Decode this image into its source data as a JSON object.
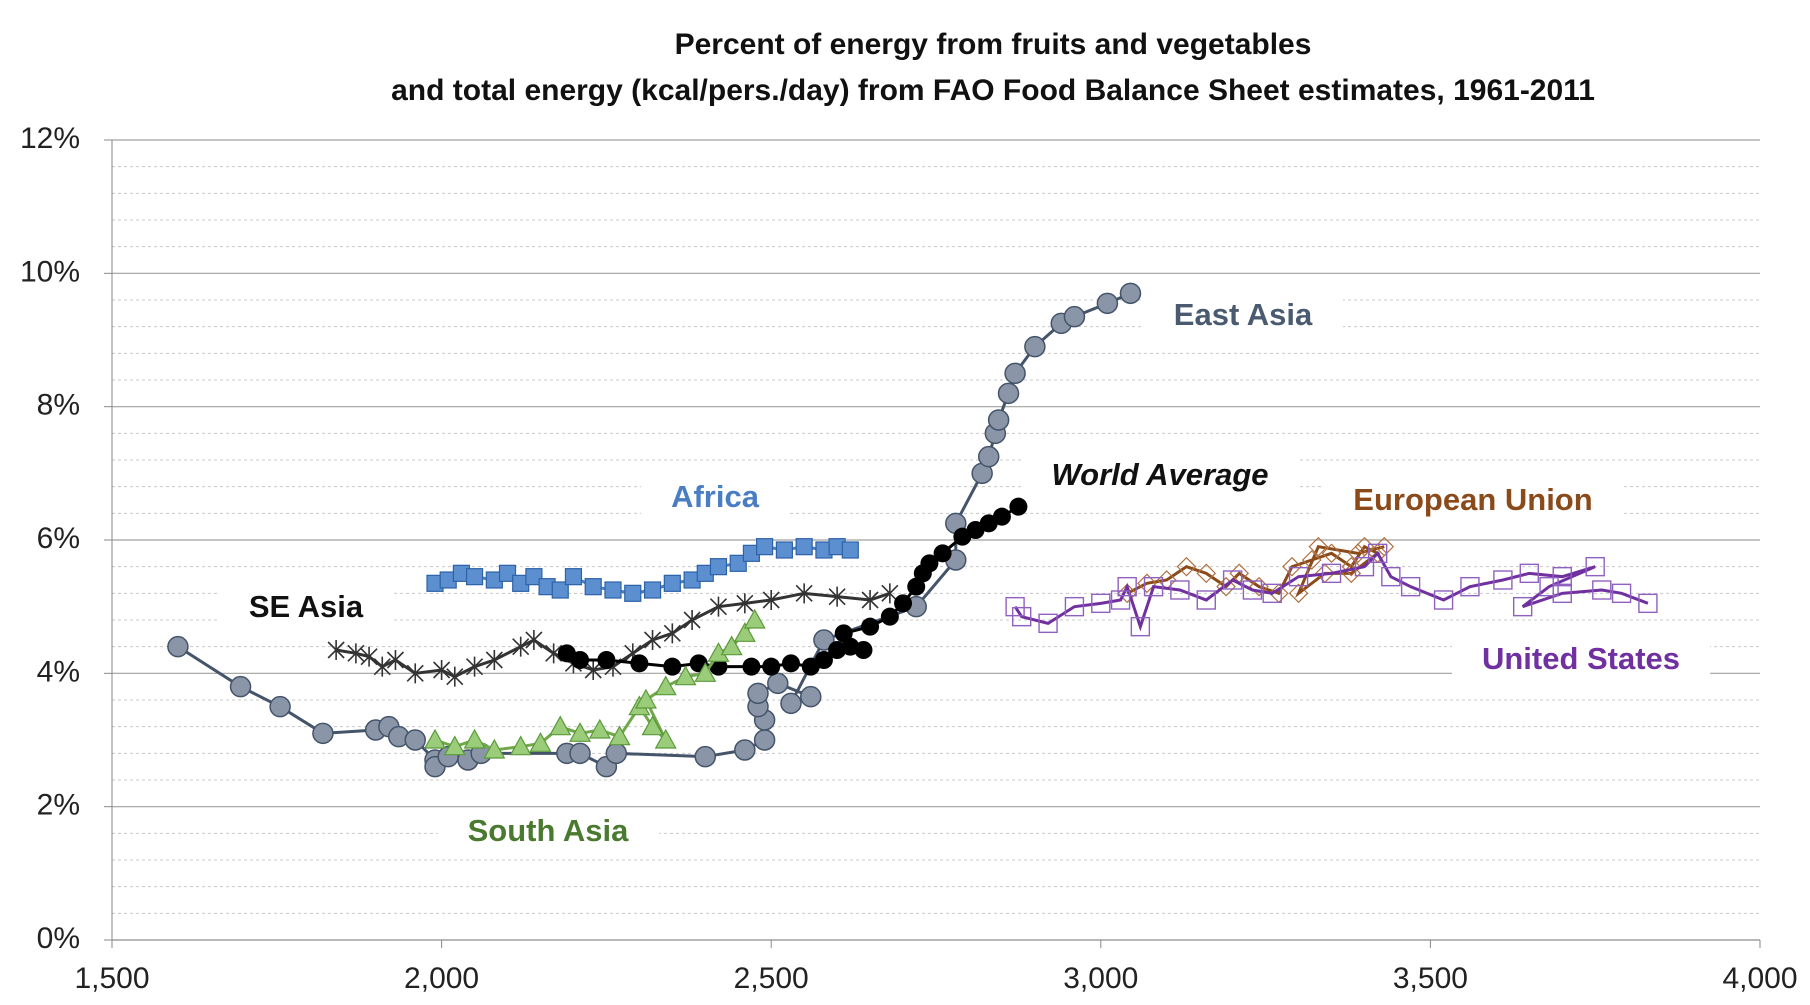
{
  "chart_data": {
    "type": "line",
    "title": [
      "Percent of energy from fruits and vegetables",
      "and total energy (kcal/pers./day) from FAO Food Balance Sheet estimates, 1961-2011"
    ],
    "xlim": [
      1500,
      4000
    ],
    "xticks": [
      {
        "value": 1500,
        "label": "1,500"
      },
      {
        "value": 2000,
        "label": "2,000"
      },
      {
        "value": 2500,
        "label": "2,500"
      },
      {
        "value": 3000,
        "label": "3,000"
      },
      {
        "value": 3500,
        "label": "3,500"
      },
      {
        "value": 4000,
        "label": "4,000"
      }
    ],
    "ylim": [
      0,
      12
    ],
    "yticks": [
      {
        "value": 0,
        "label": "0%"
      },
      {
        "value": 2,
        "label": "2%"
      },
      {
        "value": 4,
        "label": "4%"
      },
      {
        "value": 6,
        "label": "6%"
      },
      {
        "value": 8,
        "label": "8%"
      },
      {
        "value": 10,
        "label": "10%"
      },
      {
        "value": 12,
        "label": "12%"
      }
    ],
    "minor_yticks": [
      0.4,
      0.8,
      1.2,
      1.6,
      2.4,
      2.8,
      3.2,
      3.6,
      4.4,
      4.8,
      5.2,
      5.6,
      6.4,
      6.8,
      7.2,
      7.6,
      8.4,
      8.8,
      9.2,
      9.6,
      10.4,
      10.8,
      11.2,
      11.6
    ],
    "grid": true,
    "series": [
      {
        "name": "East Asia",
        "color": "#44546a",
        "marker": "circle",
        "x": [
          1600,
          1695,
          1755,
          1820,
          1900,
          1920,
          1935,
          1960,
          1990,
          1990,
          2010,
          2040,
          2060,
          2190,
          2210,
          2250,
          2265,
          2400,
          2460,
          2490,
          2490,
          2480,
          2480,
          2510,
          2560,
          2530,
          2580,
          2720,
          2780,
          2780,
          2820,
          2830,
          2840,
          2845,
          2860,
          2870,
          2900,
          2940,
          2960,
          3010,
          3045
        ],
        "values": [
          4.4,
          3.8,
          3.5,
          3.1,
          3.15,
          3.2,
          3.05,
          3.0,
          2.7,
          2.6,
          2.75,
          2.7,
          2.8,
          2.8,
          2.8,
          2.6,
          2.8,
          2.75,
          2.85,
          3.0,
          3.3,
          3.5,
          3.7,
          3.85,
          3.65,
          3.55,
          4.5,
          5.0,
          5.7,
          6.25,
          7.0,
          7.25,
          7.6,
          7.8,
          8.2,
          8.5,
          8.9,
          9.25,
          9.35,
          9.55,
          9.7
        ]
      },
      {
        "name": "Africa",
        "color": "#4a7ec4",
        "marker": "square",
        "x": [
          1990,
          2010,
          2030,
          2050,
          2080,
          2100,
          2120,
          2140,
          2160,
          2180,
          2200,
          2230,
          2260,
          2290,
          2320,
          2350,
          2380,
          2400,
          2420,
          2450,
          2470,
          2490,
          2520,
          2550,
          2580,
          2600,
          2620
        ],
        "values": [
          5.35,
          5.4,
          5.5,
          5.45,
          5.4,
          5.5,
          5.35,
          5.45,
          5.3,
          5.25,
          5.45,
          5.3,
          5.25,
          5.2,
          5.25,
          5.35,
          5.4,
          5.5,
          5.6,
          5.65,
          5.8,
          5.9,
          5.85,
          5.9,
          5.85,
          5.9,
          5.85
        ]
      },
      {
        "name": "SE Asia",
        "color": "#333333",
        "marker": "star",
        "x": [
          1840,
          1870,
          1890,
          1910,
          1930,
          1960,
          2000,
          2020,
          2050,
          2080,
          2120,
          2140,
          2170,
          2200,
          2230,
          2260,
          2290,
          2320,
          2350,
          2380,
          2420,
          2460,
          2500,
          2550,
          2600,
          2650,
          2680
        ],
        "values": [
          4.35,
          4.3,
          4.25,
          4.1,
          4.2,
          4.0,
          4.05,
          3.95,
          4.1,
          4.2,
          4.4,
          4.5,
          4.3,
          4.15,
          4.05,
          4.1,
          4.3,
          4.5,
          4.6,
          4.8,
          5.0,
          5.05,
          5.1,
          5.2,
          5.15,
          5.1,
          5.2
        ]
      },
      {
        "name": "World Average",
        "color": "#000000",
        "marker": "dot",
        "x": [
          2190,
          2210,
          2250,
          2300,
          2350,
          2390,
          2420,
          2470,
          2500,
          2530,
          2560,
          2580,
          2600,
          2620,
          2640,
          2610,
          2650,
          2680,
          2700,
          2720,
          2730,
          2740,
          2760,
          2790,
          2810,
          2830,
          2850,
          2875
        ],
        "values": [
          4.3,
          4.2,
          4.2,
          4.15,
          4.1,
          4.15,
          4.1,
          4.1,
          4.1,
          4.15,
          4.1,
          4.2,
          4.35,
          4.4,
          4.35,
          4.6,
          4.7,
          4.85,
          5.05,
          5.3,
          5.5,
          5.65,
          5.8,
          6.05,
          6.15,
          6.25,
          6.35,
          6.5
        ]
      },
      {
        "name": "European Union",
        "color": "#8a4a1a",
        "marker": "diamond",
        "x": [
          3040,
          3070,
          3100,
          3130,
          3160,
          3190,
          3210,
          3240,
          3270,
          3290,
          3320,
          3350,
          3380,
          3400,
          3420,
          3380,
          3340,
          3300,
          3330,
          3390,
          3430
        ],
        "values": [
          5.2,
          5.35,
          5.4,
          5.6,
          5.5,
          5.3,
          5.5,
          5.3,
          5.2,
          5.6,
          5.7,
          5.8,
          5.6,
          5.9,
          5.8,
          5.5,
          5.5,
          5.2,
          5.9,
          5.8,
          5.9
        ]
      },
      {
        "name": "United States",
        "color": "#7030a0",
        "marker": "hollow-square",
        "x": [
          2870,
          2880,
          2920,
          2960,
          3000,
          3030,
          3040,
          3060,
          3080,
          3120,
          3160,
          3200,
          3230,
          3260,
          3300,
          3350,
          3400,
          3420,
          3440,
          3470,
          3520,
          3560,
          3610,
          3650,
          3700,
          3750,
          3680,
          3640,
          3700,
          3760,
          3790,
          3830
        ],
        "values": [
          5.0,
          4.85,
          4.75,
          5.0,
          5.05,
          5.1,
          5.3,
          4.7,
          5.3,
          5.25,
          5.1,
          5.4,
          5.25,
          5.2,
          5.45,
          5.5,
          5.6,
          5.8,
          5.45,
          5.3,
          5.1,
          5.3,
          5.4,
          5.5,
          5.45,
          5.6,
          5.3,
          5.0,
          5.2,
          5.25,
          5.2,
          5.05
        ]
      },
      {
        "name": "South Asia",
        "color": "#70a84a",
        "marker": "triangle",
        "x": [
          1990,
          2020,
          2050,
          2080,
          2120,
          2150,
          2180,
          2210,
          2240,
          2270,
          2300,
          2320,
          2340,
          2310,
          2340,
          2370,
          2400,
          2420,
          2440,
          2460,
          2475
        ],
        "values": [
          3.0,
          2.9,
          3.0,
          2.85,
          2.9,
          2.95,
          3.2,
          3.1,
          3.15,
          3.05,
          3.5,
          3.2,
          3.0,
          3.6,
          3.8,
          3.95,
          4.0,
          4.3,
          4.4,
          4.6,
          4.8
        ]
      }
    ]
  }
}
